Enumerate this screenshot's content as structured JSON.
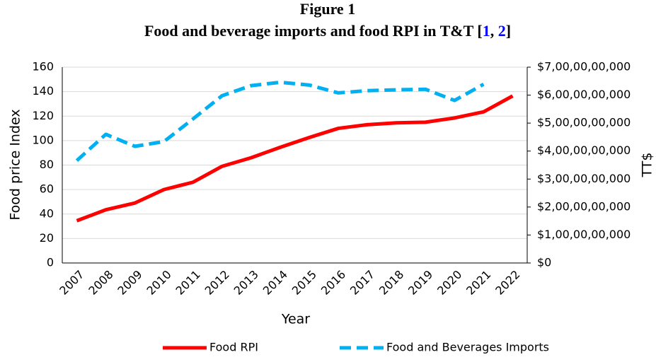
{
  "chart_data": {
    "type": "line",
    "title": "Figure 1",
    "subtitle_parts": [
      {
        "text": "Food and beverage imports and food RPI in T&T [",
        "color": "#000000"
      },
      {
        "text": "1",
        "color": "#0000ff"
      },
      {
        "text": ", ",
        "color": "#000000"
      },
      {
        "text": "2",
        "color": "#0000ff"
      },
      {
        "text": "]",
        "color": "#000000"
      }
    ],
    "x_label": "Year",
    "y_label": "Food price Index",
    "y2_label": "TT$",
    "categories": [
      "2007",
      "2008",
      "2009",
      "2010",
      "2011",
      "2012",
      "2013",
      "2014",
      "2015",
      "2016",
      "2017",
      "2018",
      "2019",
      "2020",
      "2021",
      "2022"
    ],
    "series": [
      {
        "name": "Food RPI",
        "color": "#ff0000",
        "dash": "solid",
        "values": [
          34.5,
          43.5,
          49,
          60,
          66,
          79,
          86,
          94.5,
          102.5,
          110,
          113,
          114.5,
          115,
          118.5,
          123.5,
          136.5
        ]
      },
      {
        "name": "Food and Beverages Imports",
        "color": "#00b0f0",
        "dash": "dashed",
        "axis": "y2",
        "values": [
          3660000000,
          4600000000,
          4170000000,
          4340000000,
          5150000000,
          5980000000,
          6340000000,
          6460000000,
          6360000000,
          6080000000,
          6160000000,
          6190000000,
          6210000000,
          5810000000,
          6390000000,
          null
        ]
      }
    ],
    "ylim": [
      0,
      160
    ],
    "yticks": [
      0,
      20,
      40,
      60,
      80,
      100,
      120,
      140,
      160
    ],
    "y2lim": [
      0,
      7000000000
    ],
    "y2ticks": [
      {
        "value": 0,
        "label": "$0"
      },
      {
        "value": 1000000000,
        "label": "$1,00,00,00,000"
      },
      {
        "value": 2000000000,
        "label": "$2,00,00,00,000"
      },
      {
        "value": 3000000000,
        "label": "$3,00,00,00,000"
      },
      {
        "value": 4000000000,
        "label": "$4,00,00,00,000"
      },
      {
        "value": 5000000000,
        "label": "$5,00,00,00,000"
      },
      {
        "value": 6000000000,
        "label": "$6,00,00,00,000"
      },
      {
        "value": 7000000000,
        "label": "$7,00,00,00,000"
      }
    ],
    "grid": true,
    "legend": "bottom"
  }
}
